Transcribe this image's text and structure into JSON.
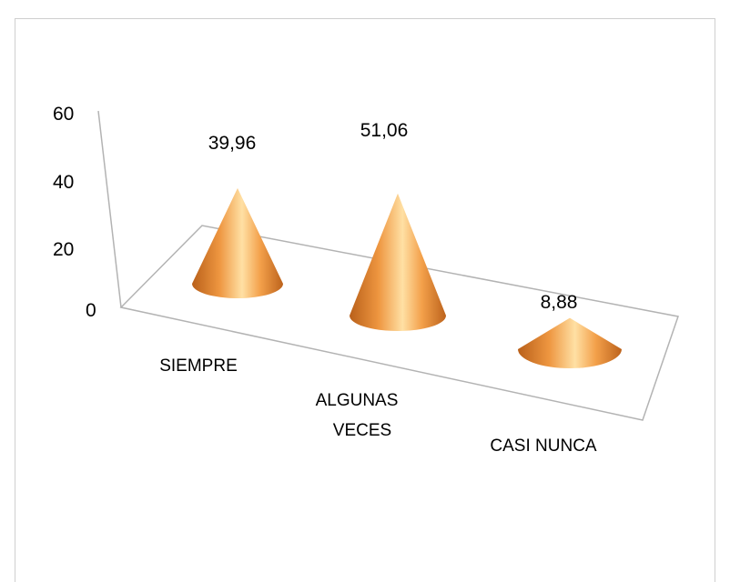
{
  "chart_data": {
    "type": "bar",
    "style": "3d-cone",
    "categories": [
      "SIEMPRE",
      "ALGUNAS VECES",
      "CASI NUNCA"
    ],
    "values": [
      39.96,
      51.06,
      8.88
    ],
    "data_labels": [
      "39,96",
      "51,06",
      "8,88"
    ],
    "category_lines": [
      [
        "SIEMPRE"
      ],
      [
        "ALGUNAS",
        "VECES"
      ],
      [
        "CASI NUNCA"
      ]
    ],
    "ylim": [
      0,
      60
    ],
    "y_ticks": [
      "0",
      "20",
      "40",
      "60"
    ],
    "legend": "none",
    "grid": false,
    "colors": {
      "cone_dark": "#c0651a",
      "cone_mid": "#f29c45",
      "cone_light": "#ffe2a8",
      "floor_edge": "#b3b3b3"
    }
  }
}
